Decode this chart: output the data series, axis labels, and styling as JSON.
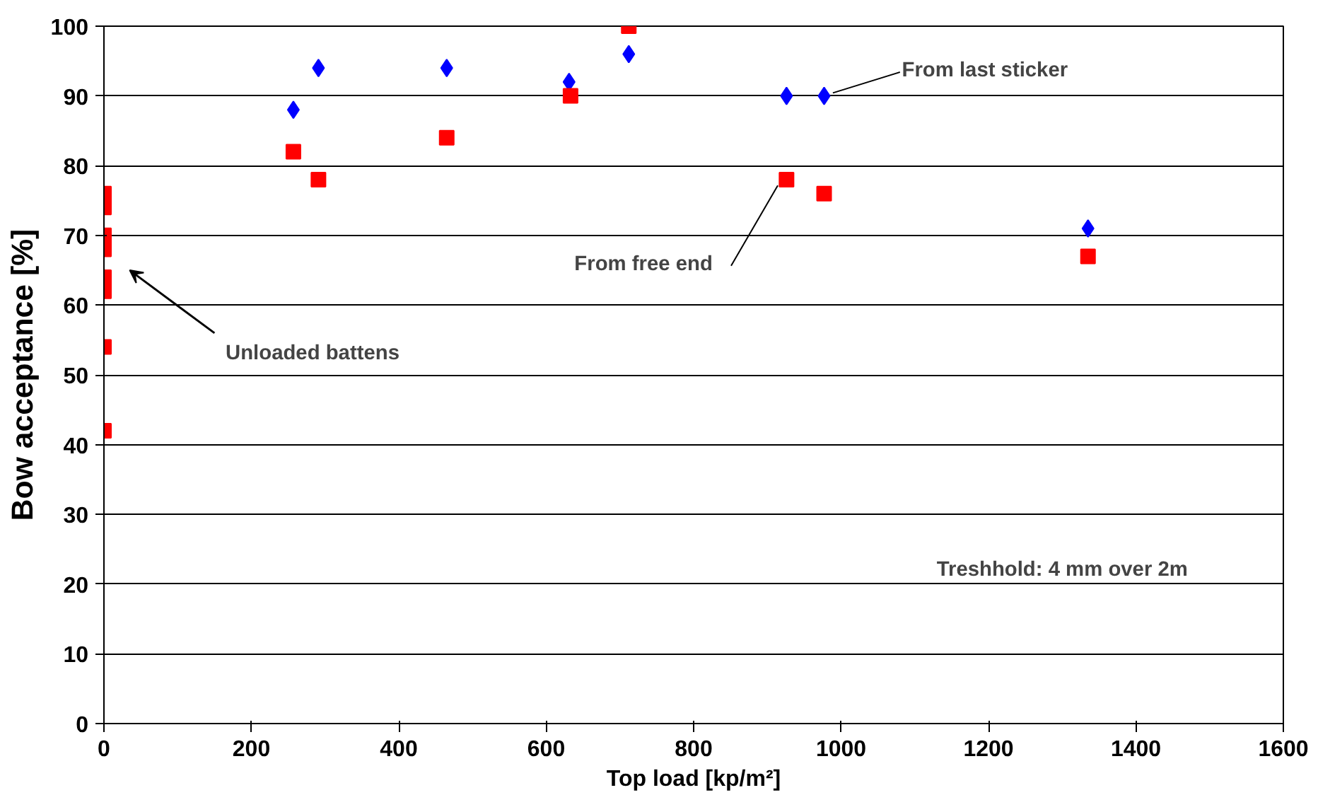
{
  "chart_data": {
    "type": "scatter",
    "xlabel": "Top load [kp/m²]",
    "ylabel": "Bow acceptance [%]",
    "xlim": [
      0,
      1600
    ],
    "ylim": [
      0,
      100
    ],
    "xticks": [
      0,
      200,
      400,
      600,
      800,
      1000,
      1200,
      1400,
      1600
    ],
    "yticks": [
      0,
      10,
      20,
      30,
      40,
      50,
      60,
      70,
      80,
      90,
      100
    ],
    "grid": "y",
    "series": [
      {
        "color": "#0000ff",
        "marker": "diamond",
        "x": [
          257,
          291,
          465,
          631,
          712,
          926,
          977,
          1335
        ],
        "values": [
          88,
          94,
          94,
          92,
          96,
          90,
          90,
          71
        ]
      },
      {
        "color": "#ff0000",
        "marker": "square",
        "x": [
          0,
          0,
          0,
          0,
          0,
          0,
          0,
          0,
          257,
          291,
          465,
          633,
          712,
          926,
          977,
          1335
        ],
        "values": [
          76,
          74,
          70,
          68,
          64,
          62,
          54,
          42,
          82,
          78,
          84,
          90,
          100,
          78,
          76,
          67
        ]
      }
    ],
    "annotations": [
      {
        "text": "From last sticker",
        "x": 977,
        "y": 90
      },
      {
        "text": "From free end",
        "x": 926,
        "y": 78
      },
      "Unloaded battens",
      "Treshhold: 4 mm over 2m"
    ]
  }
}
